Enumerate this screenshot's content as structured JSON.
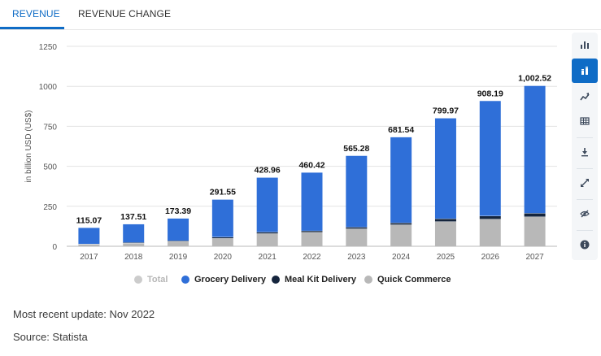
{
  "tabs": [
    {
      "label": "REVENUE",
      "active": true
    },
    {
      "label": "REVENUE CHANGE",
      "active": false
    }
  ],
  "colors": {
    "accent": "#0f6cc6",
    "total": "#cccccc",
    "grocery": "#2f6fd8",
    "meal_kit": "#15253d",
    "quick_commerce": "#b8b8b8"
  },
  "chart_data": {
    "type": "bar",
    "stacked": true,
    "ylabel": "in billion USD (US$)",
    "ylim": [
      0,
      1250
    ],
    "yticks": [
      0,
      250,
      500,
      750,
      1000,
      1250
    ],
    "categories": [
      "2017",
      "2018",
      "2019",
      "2020",
      "2021",
      "2022",
      "2023",
      "2024",
      "2025",
      "2026",
      "2027"
    ],
    "totals": [
      115.07,
      137.51,
      173.39,
      291.55,
      428.96,
      460.42,
      565.28,
      681.54,
      799.97,
      908.19,
      1002.52
    ],
    "total_labels": [
      "115.07",
      "137.51",
      "173.39",
      "291.55",
      "428.96",
      "460.42",
      "565.28",
      "681.54",
      "799.97",
      "908.19",
      "1,002.52"
    ],
    "series": [
      {
        "name": "Quick Commerce",
        "color": "#b8b8b8",
        "values": [
          12,
          20,
          30,
          50,
          80,
          88,
          110,
          135,
          155,
          170,
          185
        ]
      },
      {
        "name": "Meal Kit Delivery",
        "color": "#15253d",
        "values": [
          3,
          4,
          5,
          8,
          9,
          9,
          10,
          12,
          18,
          20,
          22
        ]
      },
      {
        "name": "Grocery Delivery",
        "color": "#2f6fd8",
        "values": [
          100.07,
          113.51,
          138.39,
          233.55,
          339.96,
          363.42,
          445.28,
          534.54,
          626.97,
          718.19,
          795.52
        ]
      }
    ],
    "grid": true,
    "legend_position": "bottom-center"
  },
  "legend": [
    {
      "label": "Total",
      "color": "#cccccc",
      "muted": true
    },
    {
      "label": "Grocery Delivery",
      "color": "#2f6fd8",
      "muted": false
    },
    {
      "label": "Meal Kit Delivery",
      "color": "#15253d",
      "muted": false
    },
    {
      "label": "Quick Commerce",
      "color": "#b8b8b8",
      "muted": false
    }
  ],
  "toolbar": [
    "bar-chart-icon",
    "stacked-bar-icon",
    "line-chart-icon",
    "table-icon",
    "download-icon",
    "expand-icon",
    "hide-icon",
    "info-icon"
  ],
  "footer": {
    "update": "Most recent update: Nov 2022",
    "source": "Source: Statista"
  }
}
